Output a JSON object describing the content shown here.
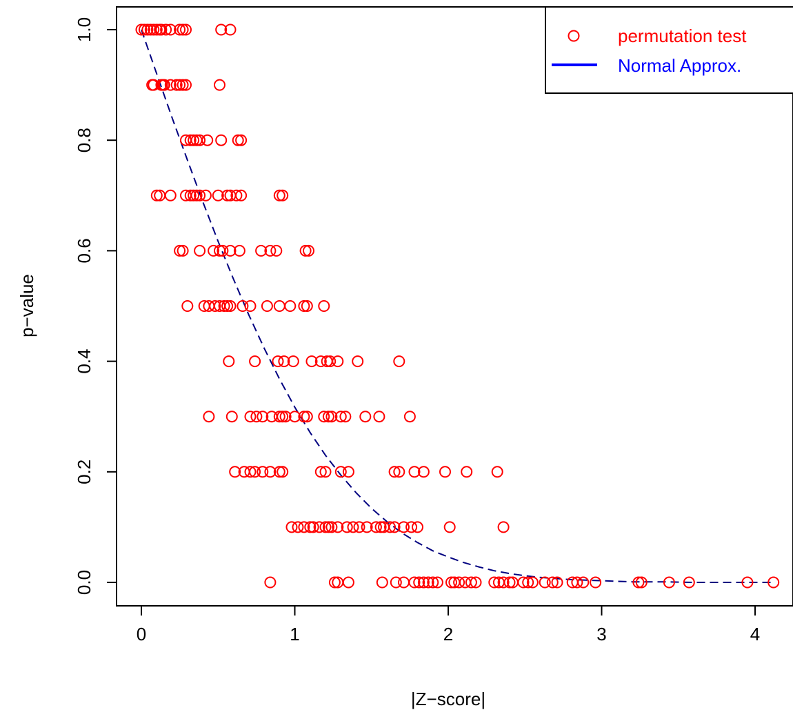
{
  "chart_data": {
    "type": "scatter",
    "title": "",
    "xlabel": "|Z−score|",
    "ylabel": "p−value",
    "xlim": [
      -0.15,
      4.2
    ],
    "ylim": [
      -0.04,
      1.04
    ],
    "x_ticks": [
      {
        "value": 0,
        "label": "0"
      },
      {
        "value": 1,
        "label": "1"
      },
      {
        "value": 2,
        "label": "2"
      },
      {
        "value": 3,
        "label": "3"
      },
      {
        "value": 4,
        "label": "4"
      }
    ],
    "y_ticks": [
      {
        "value": 0,
        "label": "0.0"
      },
      {
        "value": 0.2,
        "label": "0.2"
      },
      {
        "value": 0.4,
        "label": "0.4"
      },
      {
        "value": 0.6,
        "label": "0.6"
      },
      {
        "value": 0.8,
        "label": "0.8"
      },
      {
        "value": 1,
        "label": "1.0"
      }
    ],
    "grid": false,
    "legend_position": "top-right",
    "series": [
      {
        "name": "permutation test",
        "kind": "scatter",
        "marker": "open-circle",
        "color": "#ff0000",
        "points": [
          {
            "x": 0.0,
            "y": 1.0
          },
          {
            "x": 0.02,
            "y": 1.0
          },
          {
            "x": 0.04,
            "y": 1.0
          },
          {
            "x": 0.06,
            "y": 1.0
          },
          {
            "x": 0.08,
            "y": 1.0
          },
          {
            "x": 0.1,
            "y": 1.0
          },
          {
            "x": 0.12,
            "y": 1.0
          },
          {
            "x": 0.13,
            "y": 1.0
          },
          {
            "x": 0.16,
            "y": 1.0
          },
          {
            "x": 0.19,
            "y": 1.0
          },
          {
            "x": 0.25,
            "y": 1.0
          },
          {
            "x": 0.27,
            "y": 1.0
          },
          {
            "x": 0.29,
            "y": 1.0
          },
          {
            "x": 0.52,
            "y": 1.0
          },
          {
            "x": 0.58,
            "y": 1.0
          },
          {
            "x": 0.07,
            "y": 0.9
          },
          {
            "x": 0.08,
            "y": 0.9
          },
          {
            "x": 0.13,
            "y": 0.9
          },
          {
            "x": 0.14,
            "y": 0.9
          },
          {
            "x": 0.15,
            "y": 0.9
          },
          {
            "x": 0.19,
            "y": 0.9
          },
          {
            "x": 0.23,
            "y": 0.9
          },
          {
            "x": 0.25,
            "y": 0.9
          },
          {
            "x": 0.27,
            "y": 0.9
          },
          {
            "x": 0.29,
            "y": 0.9
          },
          {
            "x": 0.51,
            "y": 0.9
          },
          {
            "x": 0.29,
            "y": 0.8
          },
          {
            "x": 0.32,
            "y": 0.8
          },
          {
            "x": 0.34,
            "y": 0.8
          },
          {
            "x": 0.36,
            "y": 0.8
          },
          {
            "x": 0.38,
            "y": 0.8
          },
          {
            "x": 0.43,
            "y": 0.8
          },
          {
            "x": 0.52,
            "y": 0.8
          },
          {
            "x": 0.63,
            "y": 0.8
          },
          {
            "x": 0.65,
            "y": 0.8
          },
          {
            "x": 0.1,
            "y": 0.7
          },
          {
            "x": 0.12,
            "y": 0.7
          },
          {
            "x": 0.19,
            "y": 0.7
          },
          {
            "x": 0.29,
            "y": 0.7
          },
          {
            "x": 0.32,
            "y": 0.7
          },
          {
            "x": 0.34,
            "y": 0.7
          },
          {
            "x": 0.36,
            "y": 0.7
          },
          {
            "x": 0.38,
            "y": 0.7
          },
          {
            "x": 0.42,
            "y": 0.7
          },
          {
            "x": 0.5,
            "y": 0.7
          },
          {
            "x": 0.56,
            "y": 0.7
          },
          {
            "x": 0.58,
            "y": 0.7
          },
          {
            "x": 0.62,
            "y": 0.7
          },
          {
            "x": 0.65,
            "y": 0.7
          },
          {
            "x": 0.9,
            "y": 0.7
          },
          {
            "x": 0.92,
            "y": 0.7
          },
          {
            "x": 0.25,
            "y": 0.6
          },
          {
            "x": 0.27,
            "y": 0.6
          },
          {
            "x": 0.38,
            "y": 0.6
          },
          {
            "x": 0.47,
            "y": 0.6
          },
          {
            "x": 0.51,
            "y": 0.6
          },
          {
            "x": 0.53,
            "y": 0.6
          },
          {
            "x": 0.58,
            "y": 0.6
          },
          {
            "x": 0.64,
            "y": 0.6
          },
          {
            "x": 0.78,
            "y": 0.6
          },
          {
            "x": 0.84,
            "y": 0.6
          },
          {
            "x": 0.88,
            "y": 0.6
          },
          {
            "x": 1.07,
            "y": 0.6
          },
          {
            "x": 1.09,
            "y": 0.6
          },
          {
            "x": 0.3,
            "y": 0.5
          },
          {
            "x": 0.41,
            "y": 0.5
          },
          {
            "x": 0.44,
            "y": 0.5
          },
          {
            "x": 0.48,
            "y": 0.5
          },
          {
            "x": 0.51,
            "y": 0.5
          },
          {
            "x": 0.54,
            "y": 0.5
          },
          {
            "x": 0.56,
            "y": 0.5
          },
          {
            "x": 0.58,
            "y": 0.5
          },
          {
            "x": 0.66,
            "y": 0.5
          },
          {
            "x": 0.71,
            "y": 0.5
          },
          {
            "x": 0.82,
            "y": 0.5
          },
          {
            "x": 0.9,
            "y": 0.5
          },
          {
            "x": 0.97,
            "y": 0.5
          },
          {
            "x": 1.06,
            "y": 0.5
          },
          {
            "x": 1.08,
            "y": 0.5
          },
          {
            "x": 1.19,
            "y": 0.5
          },
          {
            "x": 0.57,
            "y": 0.4
          },
          {
            "x": 0.74,
            "y": 0.4
          },
          {
            "x": 0.89,
            "y": 0.4
          },
          {
            "x": 0.93,
            "y": 0.4
          },
          {
            "x": 0.99,
            "y": 0.4
          },
          {
            "x": 1.11,
            "y": 0.4
          },
          {
            "x": 1.17,
            "y": 0.4
          },
          {
            "x": 1.21,
            "y": 0.4
          },
          {
            "x": 1.23,
            "y": 0.4
          },
          {
            "x": 1.28,
            "y": 0.4
          },
          {
            "x": 1.41,
            "y": 0.4
          },
          {
            "x": 1.68,
            "y": 0.4
          },
          {
            "x": 0.44,
            "y": 0.3
          },
          {
            "x": 0.59,
            "y": 0.3
          },
          {
            "x": 0.71,
            "y": 0.3
          },
          {
            "x": 0.75,
            "y": 0.3
          },
          {
            "x": 0.79,
            "y": 0.3
          },
          {
            "x": 0.85,
            "y": 0.3
          },
          {
            "x": 0.9,
            "y": 0.3
          },
          {
            "x": 0.92,
            "y": 0.3
          },
          {
            "x": 0.94,
            "y": 0.3
          },
          {
            "x": 1.0,
            "y": 0.3
          },
          {
            "x": 1.06,
            "y": 0.3
          },
          {
            "x": 1.08,
            "y": 0.3
          },
          {
            "x": 1.19,
            "y": 0.3
          },
          {
            "x": 1.22,
            "y": 0.3
          },
          {
            "x": 1.24,
            "y": 0.3
          },
          {
            "x": 1.3,
            "y": 0.3
          },
          {
            "x": 1.33,
            "y": 0.3
          },
          {
            "x": 1.46,
            "y": 0.3
          },
          {
            "x": 1.55,
            "y": 0.3
          },
          {
            "x": 1.75,
            "y": 0.3
          },
          {
            "x": 0.61,
            "y": 0.2
          },
          {
            "x": 0.67,
            "y": 0.2
          },
          {
            "x": 0.71,
            "y": 0.2
          },
          {
            "x": 0.74,
            "y": 0.2
          },
          {
            "x": 0.79,
            "y": 0.2
          },
          {
            "x": 0.84,
            "y": 0.2
          },
          {
            "x": 0.9,
            "y": 0.2
          },
          {
            "x": 0.92,
            "y": 0.2
          },
          {
            "x": 1.17,
            "y": 0.2
          },
          {
            "x": 1.2,
            "y": 0.2
          },
          {
            "x": 1.3,
            "y": 0.2
          },
          {
            "x": 1.35,
            "y": 0.2
          },
          {
            "x": 1.65,
            "y": 0.2
          },
          {
            "x": 1.68,
            "y": 0.2
          },
          {
            "x": 1.78,
            "y": 0.2
          },
          {
            "x": 1.84,
            "y": 0.2
          },
          {
            "x": 1.98,
            "y": 0.2
          },
          {
            "x": 2.12,
            "y": 0.2
          },
          {
            "x": 2.32,
            "y": 0.2
          },
          {
            "x": 0.98,
            "y": 0.1
          },
          {
            "x": 1.02,
            "y": 0.1
          },
          {
            "x": 1.06,
            "y": 0.1
          },
          {
            "x": 1.1,
            "y": 0.1
          },
          {
            "x": 1.12,
            "y": 0.1
          },
          {
            "x": 1.16,
            "y": 0.1
          },
          {
            "x": 1.2,
            "y": 0.1
          },
          {
            "x": 1.22,
            "y": 0.1
          },
          {
            "x": 1.24,
            "y": 0.1
          },
          {
            "x": 1.28,
            "y": 0.1
          },
          {
            "x": 1.34,
            "y": 0.1
          },
          {
            "x": 1.38,
            "y": 0.1
          },
          {
            "x": 1.42,
            "y": 0.1
          },
          {
            "x": 1.47,
            "y": 0.1
          },
          {
            "x": 1.53,
            "y": 0.1
          },
          {
            "x": 1.56,
            "y": 0.1
          },
          {
            "x": 1.58,
            "y": 0.1
          },
          {
            "x": 1.62,
            "y": 0.1
          },
          {
            "x": 1.65,
            "y": 0.1
          },
          {
            "x": 1.71,
            "y": 0.1
          },
          {
            "x": 1.76,
            "y": 0.1
          },
          {
            "x": 1.8,
            "y": 0.1
          },
          {
            "x": 2.01,
            "y": 0.1
          },
          {
            "x": 2.36,
            "y": 0.1
          },
          {
            "x": 0.84,
            "y": 0.0
          },
          {
            "x": 1.26,
            "y": 0.0
          },
          {
            "x": 1.28,
            "y": 0.0
          },
          {
            "x": 1.35,
            "y": 0.0
          },
          {
            "x": 1.57,
            "y": 0.0
          },
          {
            "x": 1.66,
            "y": 0.0
          },
          {
            "x": 1.71,
            "y": 0.0
          },
          {
            "x": 1.78,
            "y": 0.0
          },
          {
            "x": 1.81,
            "y": 0.0
          },
          {
            "x": 1.84,
            "y": 0.0
          },
          {
            "x": 1.87,
            "y": 0.0
          },
          {
            "x": 1.9,
            "y": 0.0
          },
          {
            "x": 1.93,
            "y": 0.0
          },
          {
            "x": 2.02,
            "y": 0.0
          },
          {
            "x": 2.04,
            "y": 0.0
          },
          {
            "x": 2.07,
            "y": 0.0
          },
          {
            "x": 2.11,
            "y": 0.0
          },
          {
            "x": 2.15,
            "y": 0.0
          },
          {
            "x": 2.18,
            "y": 0.0
          },
          {
            "x": 2.3,
            "y": 0.0
          },
          {
            "x": 2.33,
            "y": 0.0
          },
          {
            "x": 2.36,
            "y": 0.0
          },
          {
            "x": 2.4,
            "y": 0.0
          },
          {
            "x": 2.42,
            "y": 0.0
          },
          {
            "x": 2.49,
            "y": 0.0
          },
          {
            "x": 2.52,
            "y": 0.0
          },
          {
            "x": 2.55,
            "y": 0.0
          },
          {
            "x": 2.63,
            "y": 0.0
          },
          {
            "x": 2.68,
            "y": 0.0
          },
          {
            "x": 2.71,
            "y": 0.0
          },
          {
            "x": 2.81,
            "y": 0.0
          },
          {
            "x": 2.84,
            "y": 0.0
          },
          {
            "x": 2.88,
            "y": 0.0
          },
          {
            "x": 2.96,
            "y": 0.0
          },
          {
            "x": 3.24,
            "y": 0.0
          },
          {
            "x": 3.26,
            "y": 0.0
          },
          {
            "x": 3.44,
            "y": 0.0
          },
          {
            "x": 3.57,
            "y": 0.0
          },
          {
            "x": 3.95,
            "y": 0.0
          },
          {
            "x": 4.12,
            "y": 0.0
          }
        ]
      },
      {
        "name": "Normal Approx.",
        "kind": "line",
        "line_style": "dashed",
        "color": "#000080",
        "legend_color": "#0000ff",
        "x": [
          0.0,
          0.1,
          0.2,
          0.3,
          0.4,
          0.5,
          0.6,
          0.7,
          0.8,
          0.9,
          1.0,
          1.1,
          1.2,
          1.3,
          1.4,
          1.5,
          1.6,
          1.7,
          1.8,
          1.9,
          2.0,
          2.1,
          2.2,
          2.3,
          2.4,
          2.5,
          2.6,
          2.7,
          2.8,
          2.9,
          3.0,
          3.2,
          3.4,
          3.6,
          3.8,
          4.0,
          4.12
        ],
        "y": [
          1.0,
          0.92,
          0.841,
          0.764,
          0.689,
          0.617,
          0.549,
          0.484,
          0.424,
          0.368,
          0.317,
          0.271,
          0.23,
          0.194,
          0.162,
          0.134,
          0.11,
          0.089,
          0.072,
          0.057,
          0.046,
          0.036,
          0.028,
          0.021,
          0.016,
          0.012,
          0.009,
          0.007,
          0.005,
          0.004,
          0.003,
          0.001,
          0.001,
          0.0,
          0.0,
          0.0,
          0.0
        ]
      }
    ]
  }
}
